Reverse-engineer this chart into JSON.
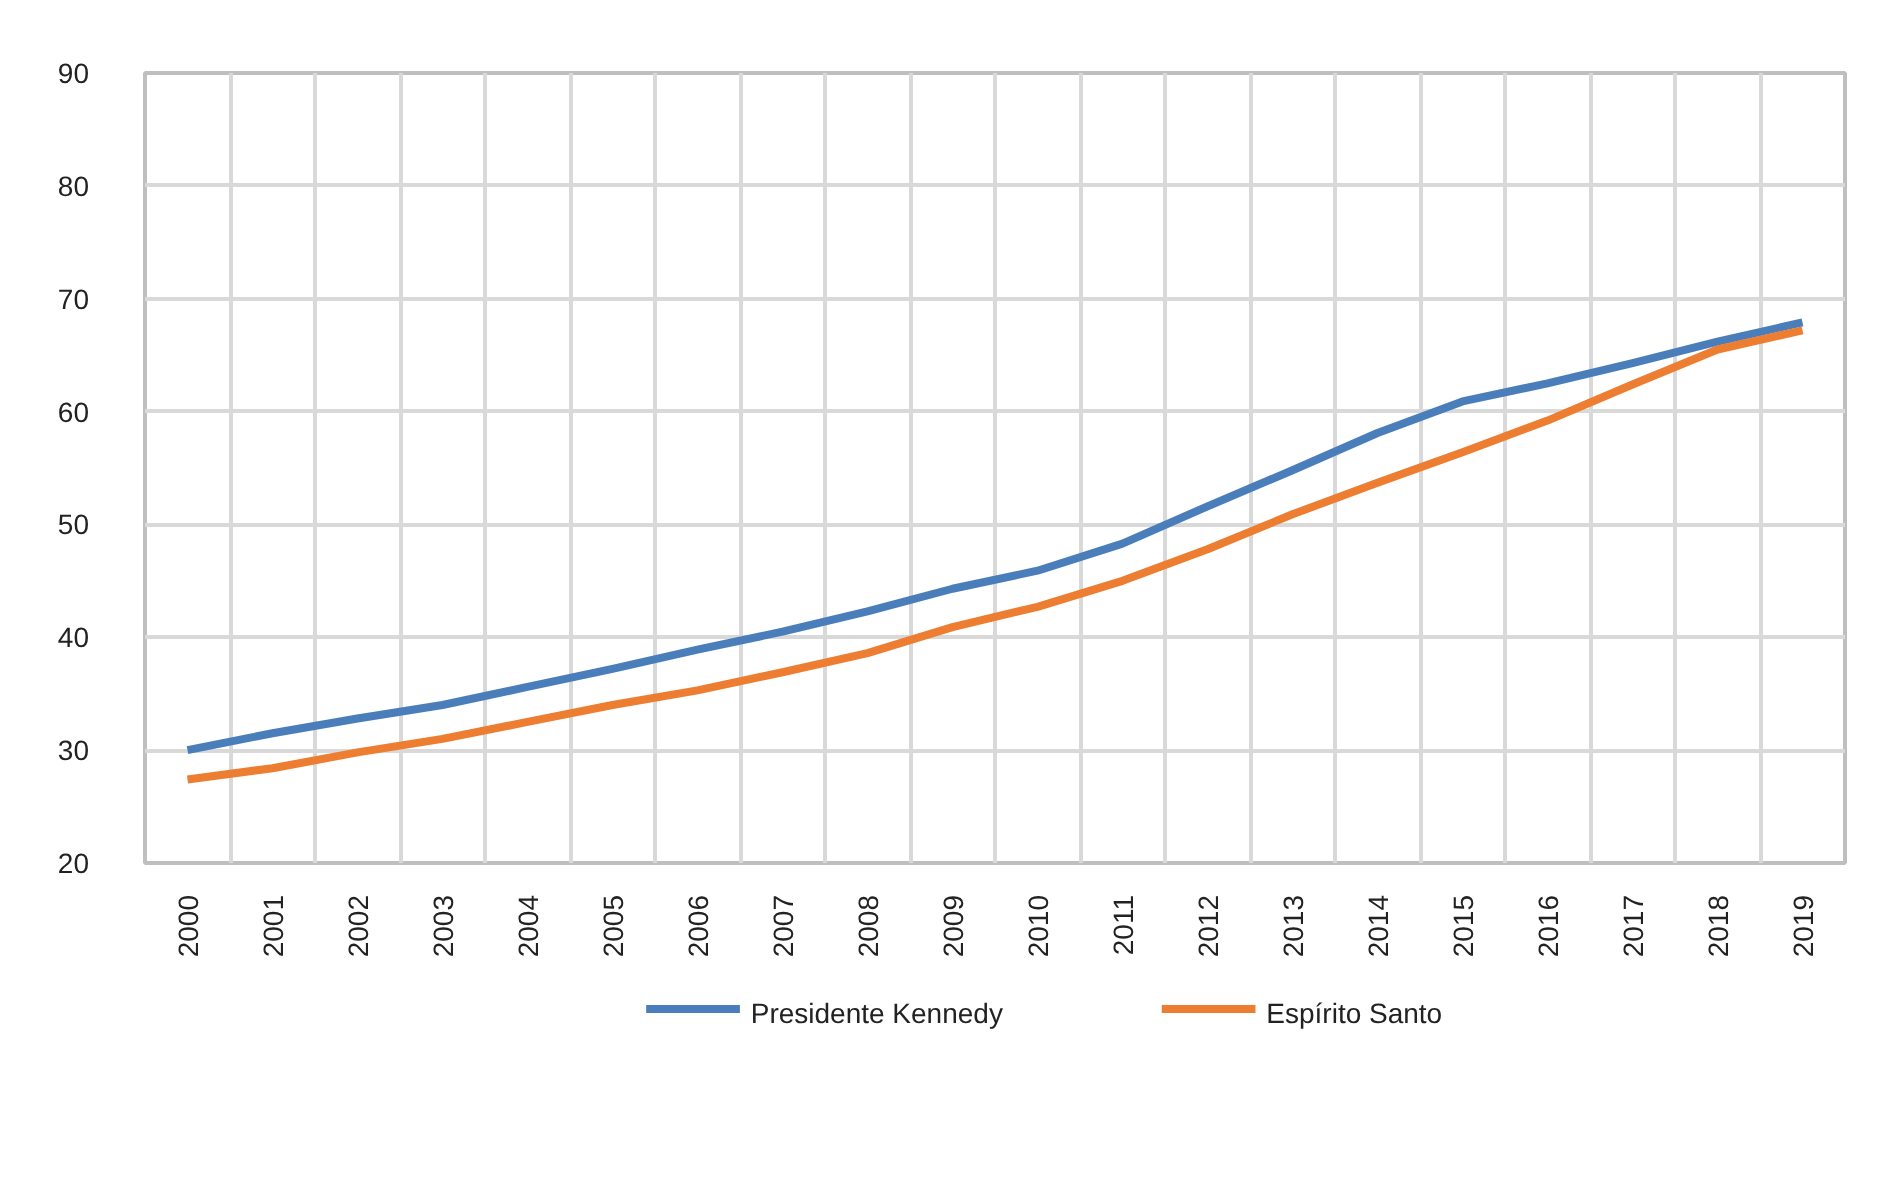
{
  "chart_data": {
    "type": "line",
    "categories": [
      "2000",
      "2001",
      "2002",
      "2003",
      "2004",
      "2005",
      "2006",
      "2007",
      "2008",
      "2009",
      "2010",
      "2011",
      "2012",
      "2013",
      "2014",
      "2015",
      "2016",
      "2017",
      "2018",
      "2019"
    ],
    "series": [
      {
        "name": "Presidente Kennedy",
        "color": "#4a7ebb",
        "values": [
          30.0,
          31.5,
          32.8,
          34.0,
          35.6,
          37.2,
          38.9,
          40.5,
          42.3,
          44.3,
          45.9,
          48.3,
          51.6,
          54.8,
          58.1,
          60.9,
          62.5,
          64.3,
          66.2,
          67.9
        ]
      },
      {
        "name": "Espírito Santo",
        "color": "#ed7d31",
        "values": [
          27.4,
          28.4,
          29.8,
          31.0,
          32.5,
          34.0,
          35.3,
          36.9,
          38.6,
          40.9,
          42.7,
          45.0,
          47.8,
          50.9,
          53.7,
          56.4,
          59.2,
          62.4,
          65.5,
          67.2
        ]
      }
    ],
    "ylim": [
      20,
      90
    ],
    "yticks": [
      20,
      30,
      40,
      50,
      60,
      70,
      80,
      90
    ],
    "grid": true,
    "legend": "bottom",
    "line_style": "solid"
  }
}
